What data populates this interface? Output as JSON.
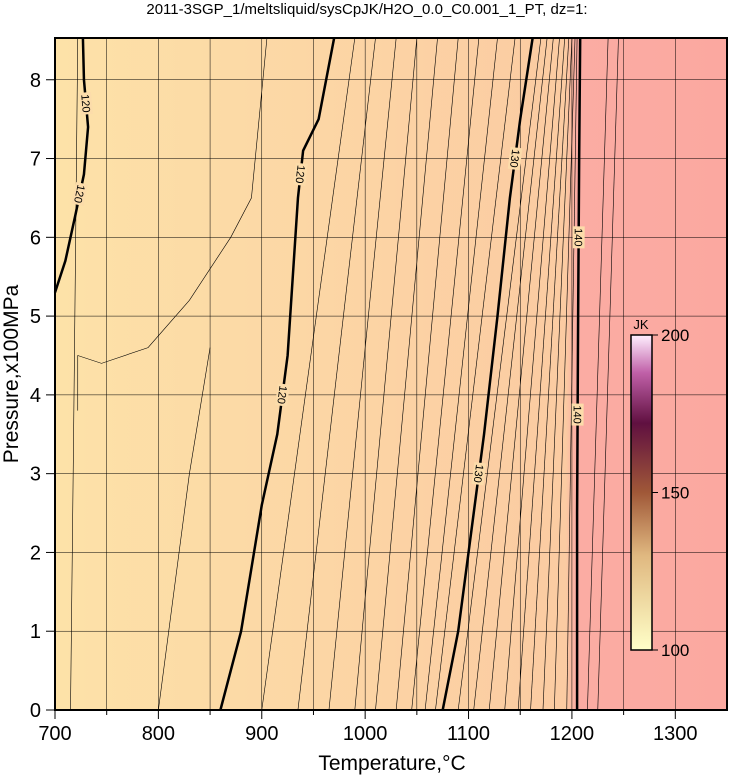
{
  "chart_data": {
    "type": "contour",
    "title": "2011-3SGP_1/meltsliquid/sysCpJK/H2O_0.0_C0.001_1_PT, dz=1:",
    "xlabel": "Temperature,°C",
    "ylabel": "Pressure,x100MPa",
    "xlim": [
      700,
      1350
    ],
    "ylim": [
      0,
      8.53
    ],
    "xticks": [
      700,
      800,
      900,
      1000,
      1100,
      1200,
      1300
    ],
    "xminorticks": [
      750,
      850,
      950,
      1050,
      1150,
      1250
    ],
    "yticks": [
      0,
      1,
      2,
      3,
      4,
      5,
      6,
      7,
      8
    ],
    "grid": true,
    "major_contours": [
      {
        "level": 120,
        "x": [
          700,
          710,
          720,
          728,
          732,
          728,
          727
        ],
        "y": [
          5.3,
          5.7,
          6.3,
          6.8,
          7.4,
          8.0,
          8.53
        ]
      },
      {
        "level": 120,
        "x": [
          860,
          880,
          900,
          915,
          925,
          930,
          935,
          940,
          955,
          970
        ],
        "y": [
          0,
          1,
          2.6,
          3.5,
          4.5,
          5.5,
          6.5,
          7.1,
          7.5,
          8.53
        ]
      },
      {
        "level": 130,
        "x": [
          1075,
          1090,
          1105,
          1115,
          1128,
          1140,
          1150,
          1162
        ],
        "y": [
          0,
          1,
          2.5,
          3.5,
          5,
          6.5,
          7.5,
          8.53
        ]
      },
      {
        "level": 140,
        "x": [
          1205,
          1205,
          1206,
          1207,
          1208
        ],
        "y": [
          0,
          2.5,
          5,
          7,
          8.53
        ]
      }
    ],
    "minor_contours": [
      {
        "level": 118,
        "x": [
          715,
          718,
          720,
          722
        ],
        "y": [
          0,
          3.5,
          6,
          8.53
        ]
      },
      {
        "level": 119,
        "x": [
          722,
          722,
          745,
          790,
          830,
          870,
          890,
          905
        ],
        "y": [
          3.8,
          4.5,
          4.4,
          4.6,
          5.2,
          6.0,
          6.5,
          8.53
        ]
      },
      {
        "level": 119,
        "x": [
          800,
          830,
          850
        ],
        "y": [
          0,
          3,
          4.6
        ]
      },
      {
        "level": 121,
        "x": [
          900,
          990
        ],
        "y": [
          0,
          8.53
        ]
      },
      {
        "level": 122,
        "x": [
          935,
          1010
        ],
        "y": [
          0,
          8.53
        ]
      },
      {
        "level": 123,
        "x": [
          965,
          1030
        ],
        "y": [
          0,
          8.53
        ]
      },
      {
        "level": 124,
        "x": [
          990,
          1050
        ],
        "y": [
          0,
          8.53
        ]
      },
      {
        "level": 125,
        "x": [
          1010,
          1070
        ],
        "y": [
          0,
          8.53
        ]
      },
      {
        "level": 126,
        "x": [
          1030,
          1090
        ],
        "y": [
          0,
          8.53
        ]
      },
      {
        "level": 127,
        "x": [
          1045,
          1110
        ],
        "y": [
          0,
          8.53
        ]
      },
      {
        "level": 128,
        "x": [
          1058,
          1128
        ],
        "y": [
          0,
          8.53
        ]
      },
      {
        "level": 129,
        "x": [
          1068,
          1145
        ],
        "y": [
          0,
          8.53
        ]
      },
      {
        "level": 131,
        "x": [
          1090,
          1170
        ],
        "y": [
          0,
          8.53
        ]
      },
      {
        "level": 132,
        "x": [
          1105,
          1176
        ],
        "y": [
          0,
          8.53
        ]
      },
      {
        "level": 133,
        "x": [
          1120,
          1182
        ],
        "y": [
          0,
          8.53
        ]
      },
      {
        "level": 134,
        "x": [
          1135,
          1188
        ],
        "y": [
          0,
          8.53
        ]
      },
      {
        "level": 135,
        "x": [
          1148,
          1193
        ],
        "y": [
          0,
          8.53
        ]
      },
      {
        "level": 136,
        "x": [
          1160,
          1197
        ],
        "y": [
          0,
          8.53
        ]
      },
      {
        "level": 137,
        "x": [
          1172,
          1200
        ],
        "y": [
          0,
          8.53
        ]
      },
      {
        "level": 138,
        "x": [
          1183,
          1203
        ],
        "y": [
          0,
          8.53
        ]
      },
      {
        "level": 139,
        "x": [
          1195,
          1205
        ],
        "y": [
          0,
          8.53
        ]
      },
      {
        "level": 141,
        "x": [
          1215,
          1235
        ],
        "y": [
          0,
          8.53
        ]
      },
      {
        "level": 142,
        "x": [
          1225,
          1245
        ],
        "y": [
          0,
          8.53
        ]
      }
    ],
    "colorbar": {
      "label": "JK",
      "lim": [
        100,
        200
      ],
      "ticks": [
        100,
        150,
        200
      ]
    }
  }
}
